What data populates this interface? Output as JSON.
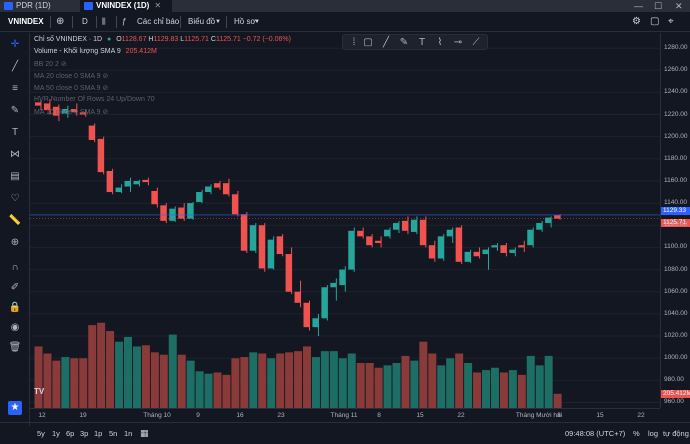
{
  "tabs": [
    {
      "label": "PDR (1D)",
      "active": false
    },
    {
      "label": "VNINDEX (1D)",
      "active": true
    }
  ],
  "window": {
    "minimize": "—",
    "maximize": "☐",
    "close": "✕"
  },
  "toolbar": {
    "symbol": "VNINDEX",
    "interval": "D",
    "indicators_label": "Các chỉ báo",
    "chart_type_label": "Biểu đồ",
    "profile_label": "Hồ sơ",
    "right_buttons": [
      "⚙",
      "▢",
      "⌖"
    ]
  },
  "legend": {
    "title": "Chỉ số VNINDEX · 1D",
    "open_label": "O",
    "open": "1128.67",
    "high_label": "H",
    "high": "1129.83",
    "low_label": "L",
    "low": "1125.71",
    "close_label": "C",
    "close": "1125.71",
    "change": "−0.72 (−0.06%)",
    "volume_label": "Volume - Khối lượng SMA 9",
    "volume_value": "205.412M",
    "indicators": [
      "BB 20 2",
      "MA 20 close 0 SMA 9",
      "MA 50 close 0 SMA 9",
      "HVR Number Of Rows 24 Up/Down 70",
      "MA 10 close 0 SMA 9"
    ]
  },
  "price_axis": {
    "ticks": [
      "1280.00",
      "1260.00",
      "1240.00",
      "1220.00",
      "1200.00",
      "1180.00",
      "1160.00",
      "1140.00",
      "1120.00",
      "1100.00",
      "1080.00",
      "1060.00",
      "1040.00",
      "1020.00",
      "1000.00",
      "980.00",
      "960.00"
    ],
    "current_blue": "1129.33",
    "current_red": "1125.71",
    "volume_label": "205.412M"
  },
  "time_axis": {
    "ticks": [
      "12",
      "19",
      "Tháng 10",
      "9",
      "16",
      "23",
      "Tháng 11",
      "8",
      "15",
      "22",
      "Tháng Mười hai",
      "8",
      "15",
      "22"
    ]
  },
  "bottom": {
    "ranges": [
      "5y",
      "1y",
      "6p",
      "3p",
      "1p",
      "5n",
      "1n"
    ],
    "time": "09:48:08 (UTC+7)",
    "pct": "%",
    "log": "log",
    "auto": "tự động"
  },
  "colors": {
    "up": "#26a69a",
    "down": "#ef5350",
    "up_vol": "#1d6e64",
    "down_vol": "#8b3a3a",
    "bg": "#131722"
  },
  "chart_data": {
    "type": "candlestick",
    "ylim": [
      955,
      1290
    ],
    "candles": [
      {
        "o": 1231,
        "h": 1233,
        "l": 1224,
        "c": 1228
      },
      {
        "o": 1230,
        "h": 1234,
        "l": 1220,
        "c": 1224
      },
      {
        "o": 1227,
        "h": 1229,
        "l": 1214,
        "c": 1219
      },
      {
        "o": 1221,
        "h": 1228,
        "l": 1217,
        "c": 1225
      },
      {
        "o": 1225,
        "h": 1230,
        "l": 1219,
        "c": 1222
      },
      {
        "o": 1222,
        "h": 1225,
        "l": 1218,
        "c": 1220
      },
      {
        "o": 1210,
        "h": 1212,
        "l": 1195,
        "c": 1197
      },
      {
        "o": 1198,
        "h": 1200,
        "l": 1166,
        "c": 1168
      },
      {
        "o": 1169,
        "h": 1171,
        "l": 1148,
        "c": 1150
      },
      {
        "o": 1150,
        "h": 1157,
        "l": 1149,
        "c": 1154
      },
      {
        "o": 1155,
        "h": 1163,
        "l": 1150,
        "c": 1160
      },
      {
        "o": 1157,
        "h": 1161,
        "l": 1155,
        "c": 1160
      },
      {
        "o": 1161,
        "h": 1163,
        "l": 1156,
        "c": 1159
      },
      {
        "o": 1151,
        "h": 1154,
        "l": 1136,
        "c": 1139
      },
      {
        "o": 1138,
        "h": 1140,
        "l": 1122,
        "c": 1124
      },
      {
        "o": 1124,
        "h": 1137,
        "l": 1123,
        "c": 1135
      },
      {
        "o": 1136,
        "h": 1140,
        "l": 1124,
        "c": 1126
      },
      {
        "o": 1126,
        "h": 1141,
        "l": 1125,
        "c": 1140
      },
      {
        "o": 1141,
        "h": 1152,
        "l": 1140,
        "c": 1150
      },
      {
        "o": 1150,
        "h": 1157,
        "l": 1148,
        "c": 1155
      },
      {
        "o": 1158,
        "h": 1160,
        "l": 1152,
        "c": 1154
      },
      {
        "o": 1158,
        "h": 1162,
        "l": 1146,
        "c": 1148
      },
      {
        "o": 1148,
        "h": 1151,
        "l": 1128,
        "c": 1130
      },
      {
        "o": 1130,
        "h": 1132,
        "l": 1095,
        "c": 1097
      },
      {
        "o": 1097,
        "h": 1122,
        "l": 1095,
        "c": 1120
      },
      {
        "o": 1120,
        "h": 1122,
        "l": 1078,
        "c": 1081
      },
      {
        "o": 1081,
        "h": 1110,
        "l": 1080,
        "c": 1107
      },
      {
        "o": 1110,
        "h": 1112,
        "l": 1092,
        "c": 1094
      },
      {
        "o": 1094,
        "h": 1100,
        "l": 1058,
        "c": 1060
      },
      {
        "o": 1060,
        "h": 1070,
        "l": 1046,
        "c": 1050
      },
      {
        "o": 1050,
        "h": 1052,
        "l": 1025,
        "c": 1028
      },
      {
        "o": 1028,
        "h": 1040,
        "l": 1020,
        "c": 1036
      },
      {
        "o": 1036,
        "h": 1066,
        "l": 1034,
        "c": 1064
      },
      {
        "o": 1064,
        "h": 1072,
        "l": 1052,
        "c": 1068
      },
      {
        "o": 1066,
        "h": 1083,
        "l": 1060,
        "c": 1080
      },
      {
        "o": 1080,
        "h": 1118,
        "l": 1078,
        "c": 1115
      },
      {
        "o": 1115,
        "h": 1118,
        "l": 1108,
        "c": 1110
      },
      {
        "o": 1110,
        "h": 1112,
        "l": 1100,
        "c": 1102
      },
      {
        "o": 1106,
        "h": 1110,
        "l": 1100,
        "c": 1104
      },
      {
        "o": 1110,
        "h": 1118,
        "l": 1108,
        "c": 1116
      },
      {
        "o": 1116,
        "h": 1124,
        "l": 1113,
        "c": 1122
      },
      {
        "o": 1124,
        "h": 1128,
        "l": 1112,
        "c": 1115
      },
      {
        "o": 1114,
        "h": 1128,
        "l": 1112,
        "c": 1125
      },
      {
        "o": 1125,
        "h": 1128,
        "l": 1100,
        "c": 1102
      },
      {
        "o": 1102,
        "h": 1106,
        "l": 1087,
        "c": 1090
      },
      {
        "o": 1090,
        "h": 1112,
        "l": 1088,
        "c": 1110
      },
      {
        "o": 1110,
        "h": 1118,
        "l": 1104,
        "c": 1116
      },
      {
        "o": 1118,
        "h": 1120,
        "l": 1085,
        "c": 1087
      },
      {
        "o": 1087,
        "h": 1098,
        "l": 1086,
        "c": 1096
      },
      {
        "o": 1096,
        "h": 1100,
        "l": 1090,
        "c": 1092
      },
      {
        "o": 1094,
        "h": 1100,
        "l": 1080,
        "c": 1098
      },
      {
        "o": 1100,
        "h": 1104,
        "l": 1097,
        "c": 1102
      },
      {
        "o": 1102,
        "h": 1104,
        "l": 1092,
        "c": 1095
      },
      {
        "o": 1095,
        "h": 1100,
        "l": 1092,
        "c": 1098
      },
      {
        "o": 1102,
        "h": 1106,
        "l": 1096,
        "c": 1100
      },
      {
        "o": 1102,
        "h": 1118,
        "l": 1100,
        "c": 1116
      },
      {
        "o": 1116,
        "h": 1124,
        "l": 1114,
        "c": 1122
      },
      {
        "o": 1122,
        "h": 1128,
        "l": 1118,
        "c": 1127
      },
      {
        "o": 1129,
        "h": 1130,
        "l": 1125,
        "c": 1126
      }
    ],
    "volumes": [
      520,
      460,
      400,
      430,
      420,
      420,
      700,
      720,
      650,
      560,
      600,
      520,
      530,
      470,
      450,
      620,
      450,
      400,
      310,
      290,
      300,
      280,
      420,
      430,
      470,
      460,
      420,
      460,
      470,
      480,
      520,
      430,
      480,
      480,
      420,
      460,
      380,
      380,
      340,
      360,
      380,
      440,
      400,
      560,
      460,
      360,
      420,
      460,
      380,
      300,
      320,
      340,
      300,
      320,
      280,
      440,
      360,
      440,
      120
    ]
  }
}
